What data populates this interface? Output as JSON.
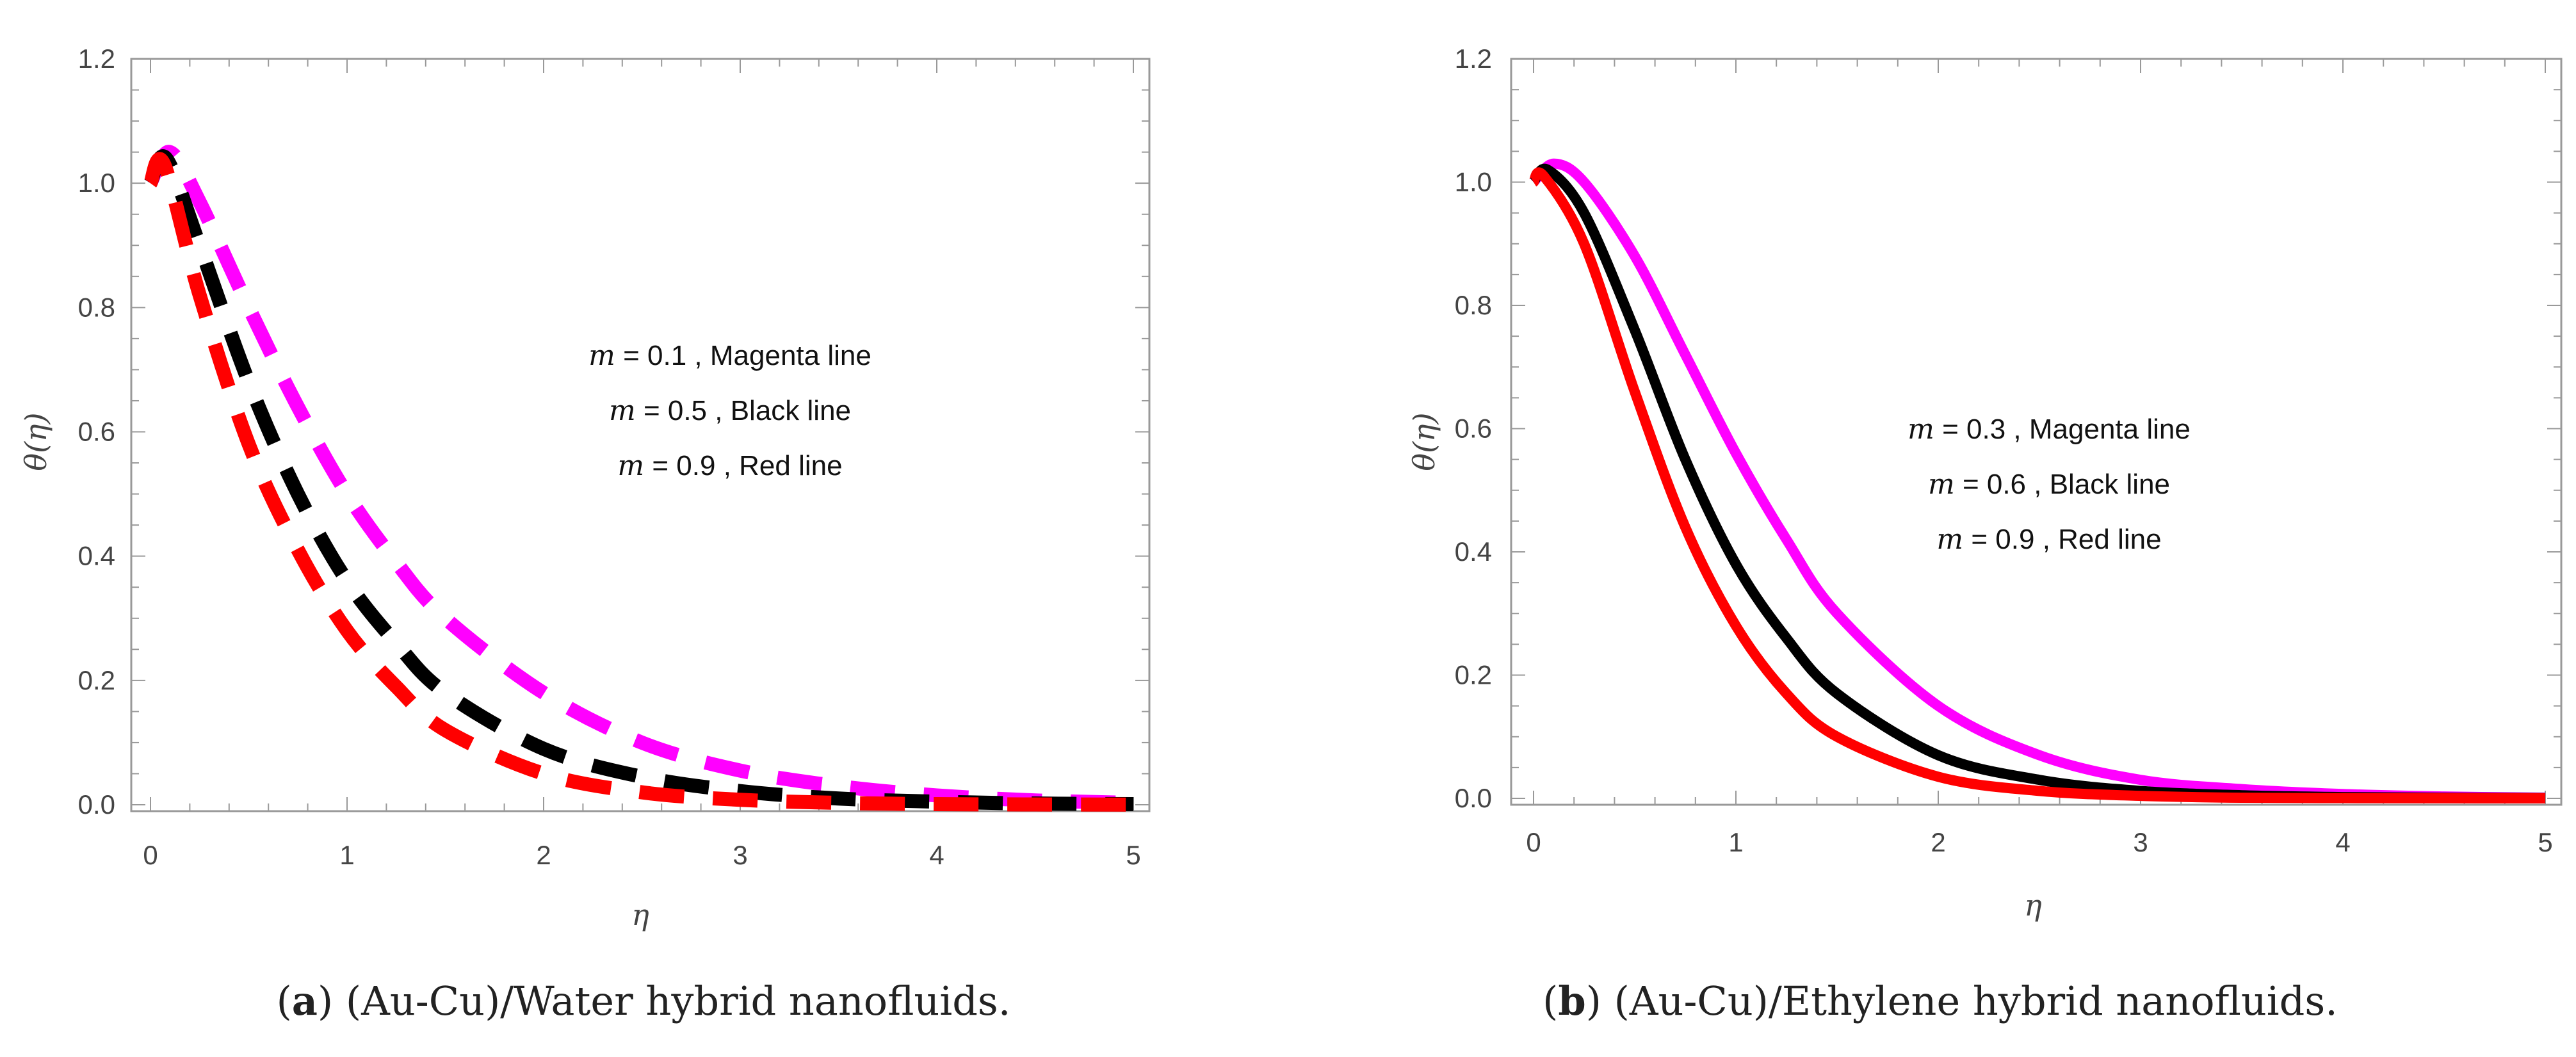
{
  "chart_data": [
    {
      "id": "a",
      "type": "line",
      "line_style": "dashed",
      "caption_label": "a",
      "caption_text": "(Au-Cu)/Water hybrid nanofluids.",
      "xlabel": "η",
      "ylabel": "θ(η)",
      "xlim": [
        0,
        5
      ],
      "ylim": [
        0,
        1.2
      ],
      "xticks": [
        "0",
        "1",
        "2",
        "3",
        "4",
        "5"
      ],
      "yticks": [
        "0.0",
        "0.2",
        "0.4",
        "0.6",
        "0.8",
        "1.0",
        "1.2"
      ],
      "annotations": [
        {
          "m": "m",
          "text": " = 0.1 , Magenta  line"
        },
        {
          "m": "m",
          "text": " = 0.5 , Black line"
        },
        {
          "m": "m",
          "text": " = 0.9 , Red  line"
        }
      ],
      "series": [
        {
          "name": "m = 0.1",
          "color": "#ff00ff",
          "x": [
            0,
            0.1,
            0.25,
            0.5,
            0.75,
            1,
            1.25,
            1.5,
            2,
            2.5,
            3,
            3.5,
            4,
            4.5,
            5
          ],
          "y": [
            1.0,
            1.05,
            0.97,
            0.8,
            0.64,
            0.5,
            0.39,
            0.3,
            0.18,
            0.1,
            0.055,
            0.03,
            0.015,
            0.007,
            0.003
          ]
        },
        {
          "name": "m = 0.5",
          "color": "#000000",
          "x": [
            0,
            0.08,
            0.25,
            0.5,
            0.75,
            1,
            1.25,
            1.5,
            2,
            2.5,
            3,
            3.5,
            4,
            4.5,
            5
          ],
          "y": [
            1.0,
            1.04,
            0.9,
            0.68,
            0.5,
            0.36,
            0.26,
            0.18,
            0.09,
            0.045,
            0.022,
            0.01,
            0.005,
            0.002,
            0.001
          ]
        },
        {
          "name": "m = 0.9",
          "color": "#ff0000",
          "x": [
            0,
            0.07,
            0.25,
            0.5,
            0.75,
            1,
            1.25,
            1.5,
            2,
            2.5,
            3,
            3.5,
            4,
            4.5,
            5
          ],
          "y": [
            1.0,
            1.03,
            0.82,
            0.58,
            0.41,
            0.28,
            0.19,
            0.12,
            0.05,
            0.02,
            0.008,
            0.003,
            0.001,
            0.0005,
            0.0002
          ]
        }
      ]
    },
    {
      "id": "b",
      "type": "line",
      "line_style": "solid",
      "caption_label": "b",
      "caption_text": "(Au-Cu)/Ethylene hybrid nanofluids.",
      "xlabel": "η",
      "ylabel": "θ(η)",
      "xlim": [
        0,
        5
      ],
      "ylim": [
        0,
        1.2
      ],
      "xticks": [
        "0",
        "1",
        "2",
        "3",
        "4",
        "5"
      ],
      "yticks": [
        "0.0",
        "0.2",
        "0.4",
        "0.6",
        "0.8",
        "1.0",
        "1.2"
      ],
      "annotations": [
        {
          "m": "m",
          "text": " = 0.3 , Magenta   line"
        },
        {
          "m": "m",
          "text": " = 0.6 , Black line"
        },
        {
          "m": "m",
          "text": " = 0.9 , Red  line"
        }
      ],
      "series": [
        {
          "name": "m = 0.3",
          "color": "#ff00ff",
          "x": [
            0,
            0.1,
            0.25,
            0.5,
            0.75,
            1,
            1.25,
            1.5,
            2,
            2.5,
            3,
            3.5,
            4,
            4.5,
            5
          ],
          "y": [
            1.0,
            1.03,
            1.0,
            0.88,
            0.72,
            0.56,
            0.42,
            0.3,
            0.15,
            0.07,
            0.03,
            0.015,
            0.007,
            0.003,
            0.001
          ]
        },
        {
          "name": "m = 0.6",
          "color": "#000000",
          "x": [
            0,
            0.07,
            0.25,
            0.5,
            0.75,
            1,
            1.25,
            1.5,
            2,
            2.5,
            3,
            3.5,
            4,
            4.5,
            5
          ],
          "y": [
            1.0,
            1.02,
            0.95,
            0.76,
            0.55,
            0.38,
            0.26,
            0.17,
            0.07,
            0.03,
            0.012,
            0.005,
            0.002,
            0.001,
            0.0005
          ]
        },
        {
          "name": "m = 0.9",
          "color": "#ff0000",
          "x": [
            0,
            0.05,
            0.25,
            0.5,
            0.75,
            1,
            1.25,
            1.5,
            2,
            2.5,
            3,
            3.5,
            4,
            4.5,
            5
          ],
          "y": [
            1.0,
            1.01,
            0.9,
            0.66,
            0.44,
            0.28,
            0.17,
            0.1,
            0.035,
            0.012,
            0.004,
            0.001,
            0.0005,
            0.0002,
            0.0001
          ]
        }
      ]
    }
  ]
}
